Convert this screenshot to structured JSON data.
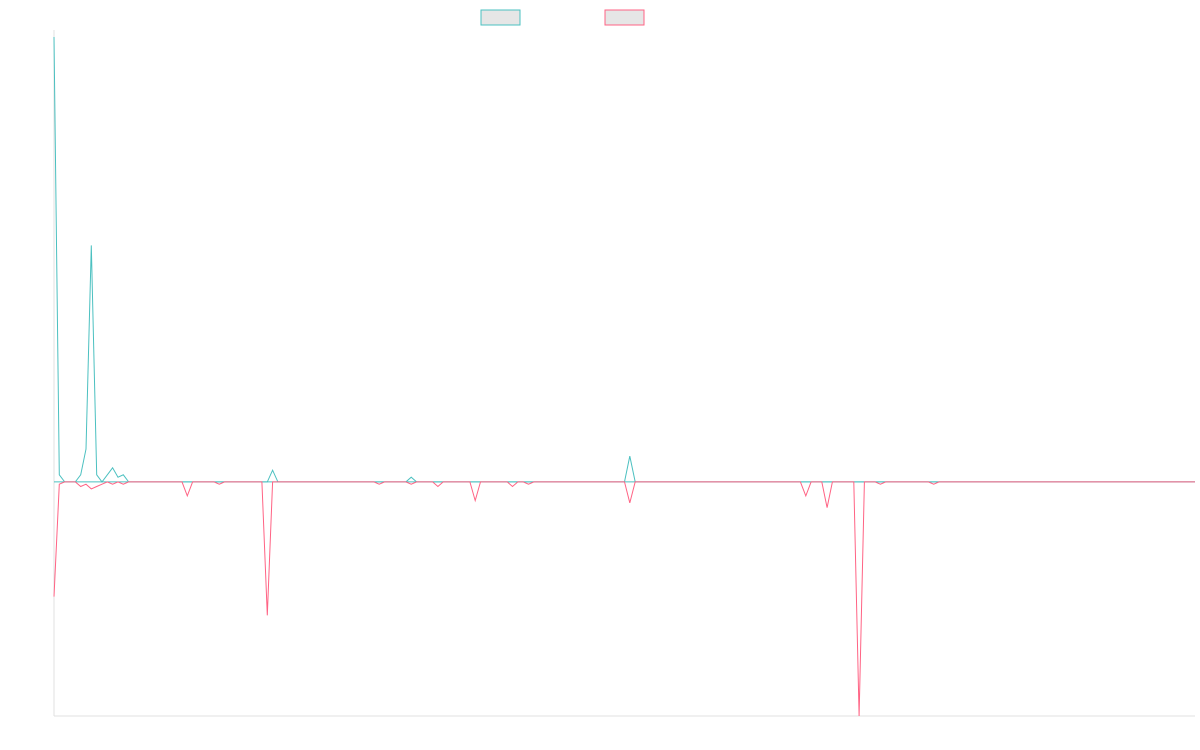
{
  "chart_data": {
    "type": "line",
    "x_count": 215,
    "ylim": [
      -1.0,
      1.9
    ],
    "zero_line": true,
    "grid": false,
    "legend": {
      "placement": "top-center"
    },
    "series": [
      {
        "color": "#4bc0c0",
        "fill": "#e6e6e6",
        "points": [
          [
            0,
            1.9
          ],
          [
            1,
            0.03
          ],
          [
            2,
            0.0
          ],
          [
            4,
            0.0
          ],
          [
            5,
            0.03
          ],
          [
            6,
            0.14
          ],
          [
            7,
            1.01
          ],
          [
            8,
            0.03
          ],
          [
            9,
            0.0
          ],
          [
            11,
            0.06
          ],
          [
            12,
            0.02
          ],
          [
            13,
            0.03
          ],
          [
            14,
            0.0
          ],
          [
            40,
            0.0
          ],
          [
            41,
            0.05
          ],
          [
            42,
            0.0
          ],
          [
            62,
            0.0
          ],
          [
            63,
            0.0
          ],
          [
            64,
            0.0
          ],
          [
            66,
            0.0
          ],
          [
            67,
            0.02
          ],
          [
            68,
            0.0
          ],
          [
            70,
            0.0
          ],
          [
            71,
            0.0
          ],
          [
            75,
            0.0
          ],
          [
            76,
            0.0
          ],
          [
            77,
            0.0
          ],
          [
            78,
            0.0
          ],
          [
            80,
            0.0
          ],
          [
            88,
            0.0
          ],
          [
            89,
            0.0
          ],
          [
            90,
            0.0
          ],
          [
            92,
            0.0
          ],
          [
            94,
            0.0
          ],
          [
            95,
            0.0
          ],
          [
            96,
            0.0
          ],
          [
            97,
            0.0
          ],
          [
            107,
            0.0
          ],
          [
            108,
            0.11
          ],
          [
            109,
            0.0
          ],
          [
            112,
            0.0
          ],
          [
            113,
            0.0
          ],
          [
            114,
            0.0
          ],
          [
            135,
            0.0
          ],
          [
            138,
            0.0
          ],
          [
            140,
            0.0
          ],
          [
            141,
            0.0
          ],
          [
            142,
            0.0
          ],
          [
            143,
            0.0
          ],
          [
            144,
            0.0
          ],
          [
            145,
            0.0
          ],
          [
            146,
            0.0
          ],
          [
            147,
            0.0
          ],
          [
            150,
            0.0
          ],
          [
            155,
            0.0
          ],
          [
            156,
            0.0
          ],
          [
            157,
            0.0
          ],
          [
            214,
            0.0
          ]
        ]
      },
      {
        "color": "#ff6384",
        "fill": "#e6e6e6",
        "points": [
          [
            0,
            -0.49
          ],
          [
            1,
            -0.01
          ],
          [
            2,
            0.0
          ],
          [
            4,
            0.0
          ],
          [
            5,
            -0.02
          ],
          [
            6,
            -0.01
          ],
          [
            7,
            -0.03
          ],
          [
            8,
            -0.02
          ],
          [
            9,
            -0.01
          ],
          [
            10,
            0.0
          ],
          [
            11,
            -0.01
          ],
          [
            12,
            0.0
          ],
          [
            13,
            -0.01
          ],
          [
            14,
            0.0
          ],
          [
            24,
            0.0
          ],
          [
            25,
            -0.06
          ],
          [
            26,
            0.0
          ],
          [
            30,
            0.0
          ],
          [
            31,
            -0.01
          ],
          [
            32,
            0.0
          ],
          [
            39,
            0.0
          ],
          [
            40,
            -0.57
          ],
          [
            41,
            0.0
          ],
          [
            42,
            0.0
          ],
          [
            60,
            0.0
          ],
          [
            61,
            -0.01
          ],
          [
            62,
            0.0
          ],
          [
            64,
            0.0
          ],
          [
            66,
            0.0
          ],
          [
            67,
            -0.01
          ],
          [
            68,
            0.0
          ],
          [
            71,
            0.0
          ],
          [
            72,
            -0.02
          ],
          [
            73,
            0.0
          ],
          [
            78,
            0.0
          ],
          [
            79,
            -0.08
          ],
          [
            80,
            0.0
          ],
          [
            85,
            0.0
          ],
          [
            86,
            -0.02
          ],
          [
            87,
            0.0
          ],
          [
            88,
            0.0
          ],
          [
            89,
            -0.01
          ],
          [
            90,
            0.0
          ],
          [
            92,
            0.0
          ],
          [
            93,
            0.0
          ],
          [
            94,
            0.0
          ],
          [
            95,
            0.0
          ],
          [
            107,
            0.0
          ],
          [
            108,
            -0.09
          ],
          [
            109,
            0.0
          ],
          [
            140,
            0.0
          ],
          [
            141,
            -0.06
          ],
          [
            142,
            0.0
          ],
          [
            144,
            0.0
          ],
          [
            145,
            -0.11
          ],
          [
            146,
            0.0
          ],
          [
            140,
            0.0
          ],
          [
            141,
            -0.06
          ],
          [
            142,
            0.0
          ],
          [
            144,
            0.0
          ],
          [
            145,
            -0.11
          ],
          [
            146,
            0.0
          ],
          [
            150,
            0.0
          ],
          [
            141,
            -0.06
          ],
          [
            142,
            0.0
          ],
          [
            144,
            0.0
          ],
          [
            145,
            -0.11
          ],
          [
            146,
            0.0
          ],
          [
            141,
            -0.06
          ],
          [
            150,
            0.0
          ],
          [
            151,
            -1.0
          ],
          [
            152,
            0.0
          ],
          [
            154,
            0.0
          ],
          [
            155,
            -0.01
          ],
          [
            156,
            0.0
          ],
          [
            164,
            0.0
          ],
          [
            165,
            -0.01
          ],
          [
            166,
            0.0
          ],
          [
            214,
            0.0
          ]
        ]
      }
    ]
  }
}
